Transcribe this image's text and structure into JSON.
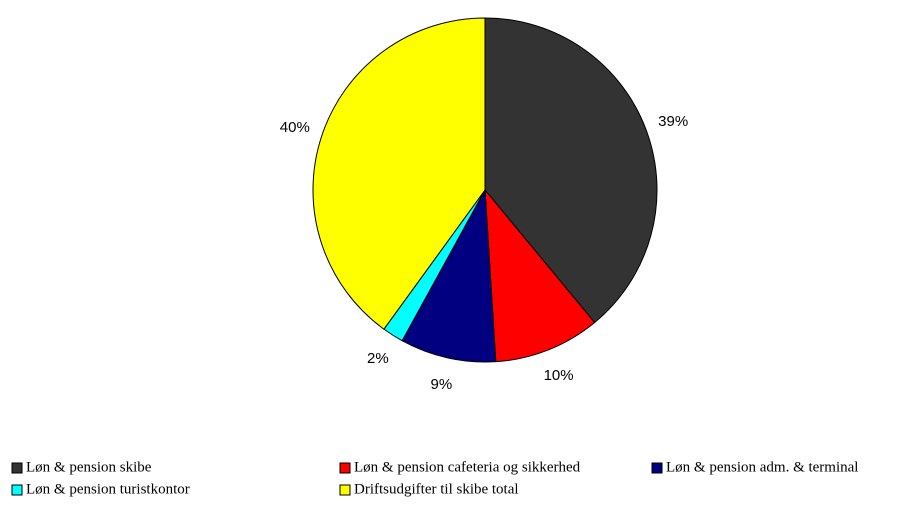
{
  "chart_data": {
    "type": "pie",
    "categories": [
      "Løn & pension skibe",
      "Løn & pension cafeteria og sikkerhed",
      "Løn & pension adm. & terminal",
      "Løn & pension turistkontor",
      "Driftsudgifter til skibe total"
    ],
    "values": [
      39,
      10,
      9,
      2,
      40
    ],
    "value_labels": [
      "39%",
      "10%",
      "9%",
      "2%",
      "40%"
    ],
    "colors": [
      "#333333",
      "#ff0000",
      "#000080",
      "#00ffff",
      "#ffff00"
    ]
  }
}
